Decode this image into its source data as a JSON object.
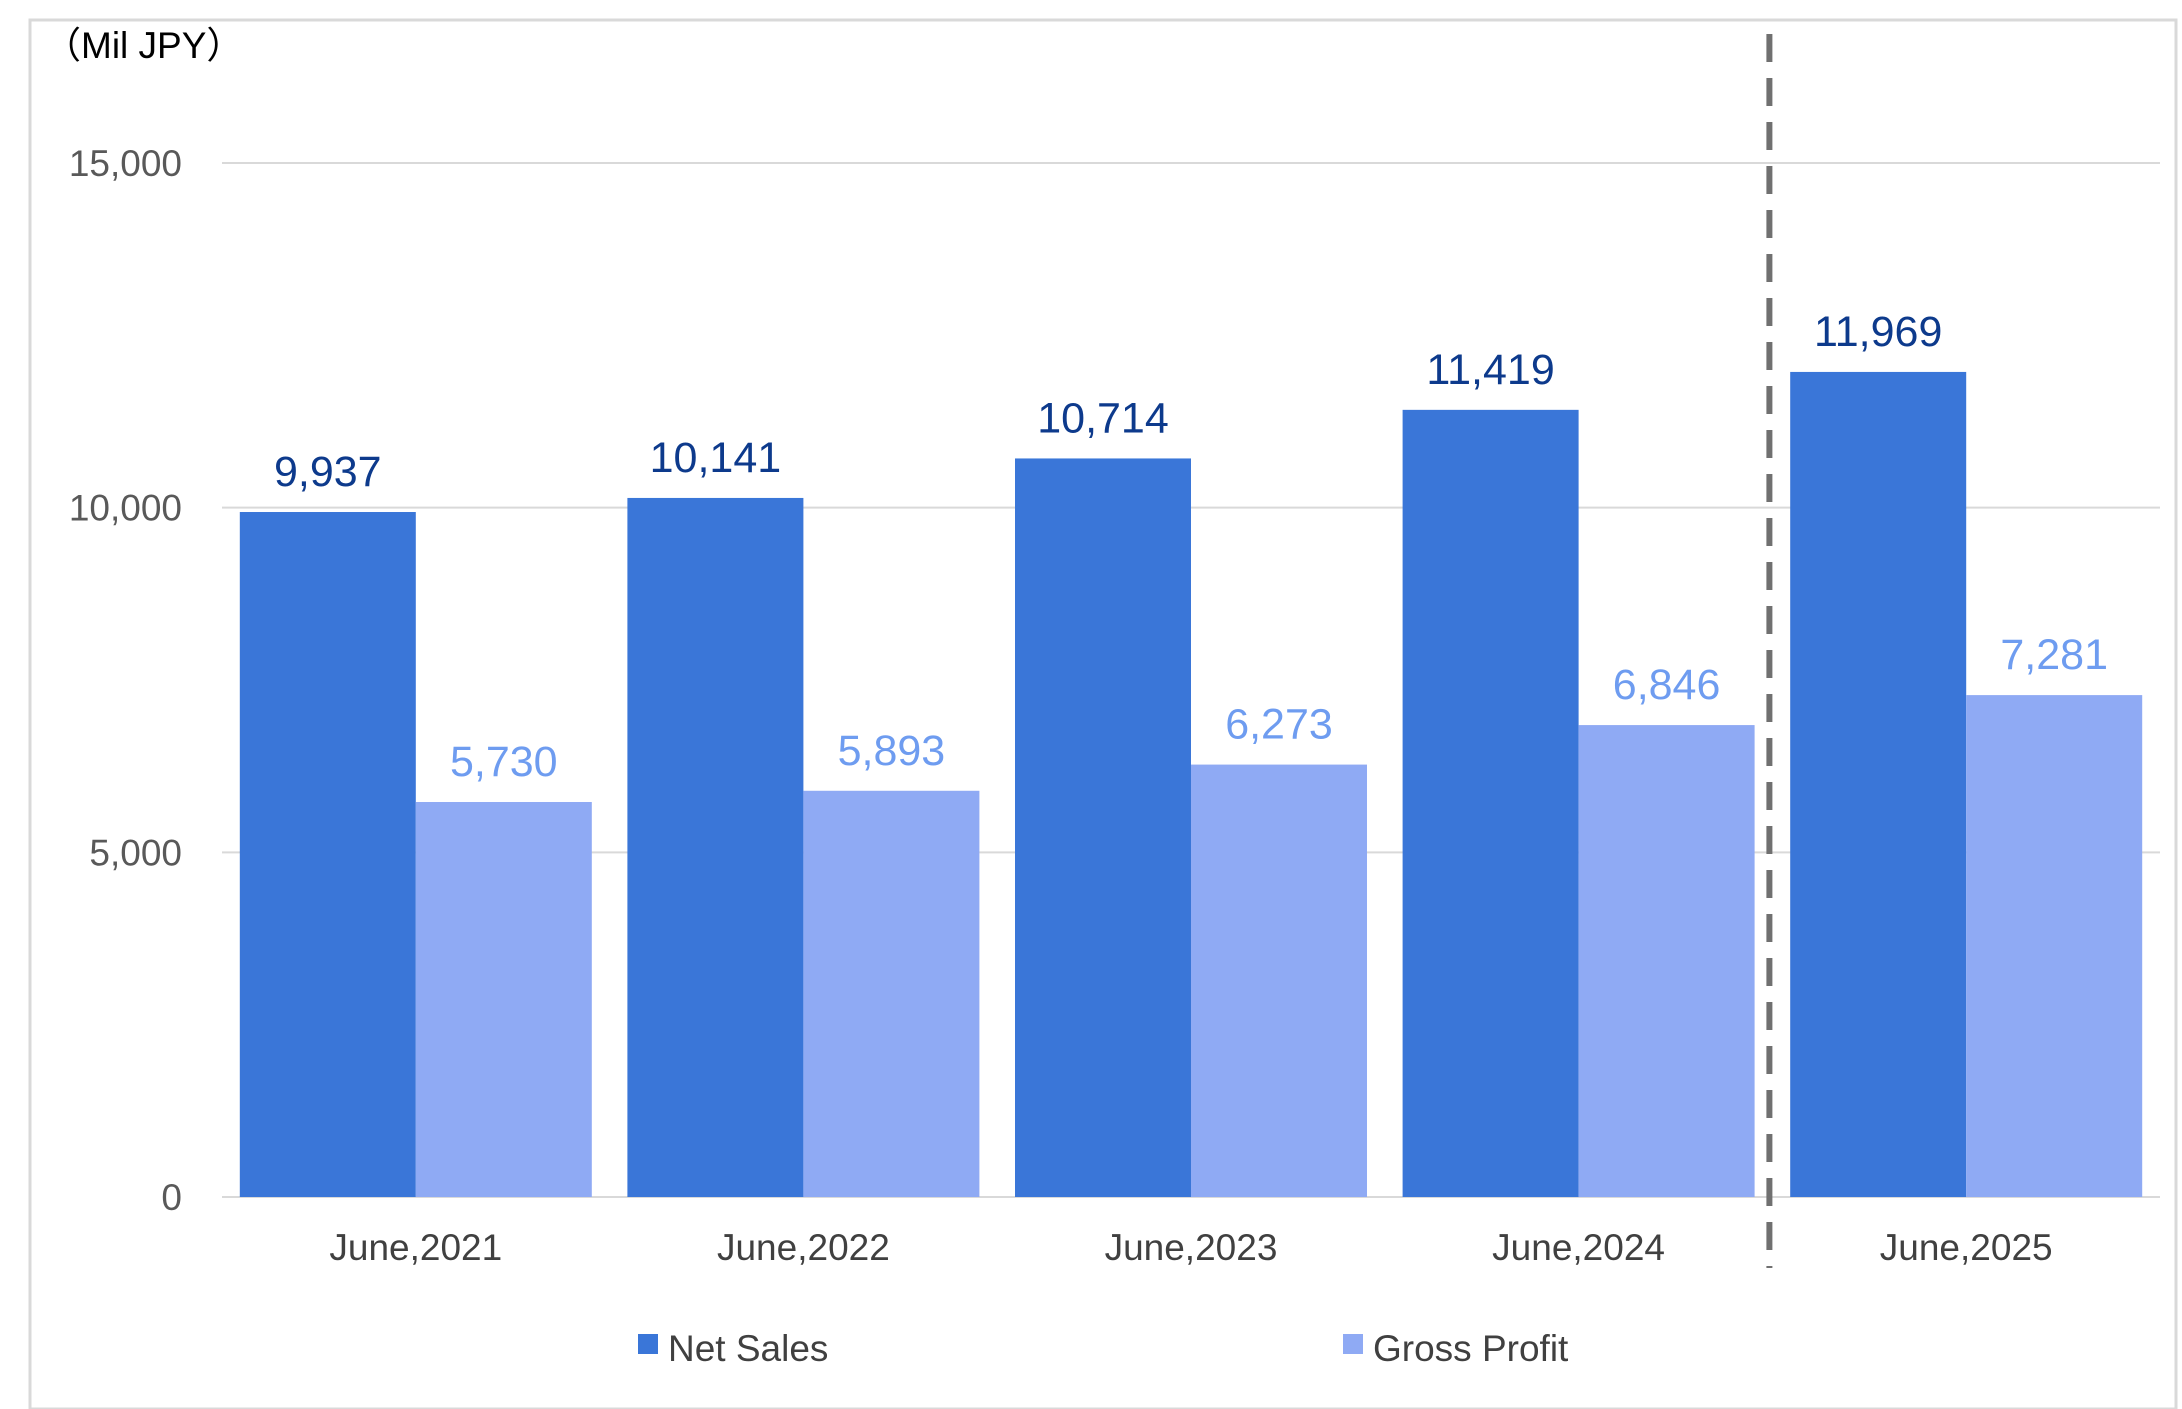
{
  "chart_data": {
    "type": "bar",
    "unit_label": "（Mil JPY）",
    "categories": [
      "June,2021",
      "June,2022",
      "June,2023",
      "June,2024",
      "June,2025"
    ],
    "series": [
      {
        "name": "Net Sales",
        "values": [
          9937,
          10141,
          10714,
          11419,
          11969
        ],
        "labels": [
          "9,937",
          "10,141",
          "10,714",
          "11,419",
          "11,969"
        ]
      },
      {
        "name": "Gross Profit",
        "values": [
          5730,
          5893,
          6273,
          6846,
          7281
        ],
        "labels": [
          "5,730",
          "5,893",
          "6,273",
          "6,846",
          "7,281"
        ]
      }
    ],
    "y_ticks": [
      "0",
      "5,000",
      "10,000",
      "15,000"
    ],
    "ylim": [
      0,
      15000
    ],
    "grid": true,
    "legend_position": "bottom",
    "divider": "dashed line between June,2024 and June,2025"
  },
  "colors": {
    "net_sales": "#3a76d8",
    "gross_profit": "#8faaf4",
    "net_sales_label": "#0d3a8c",
    "gross_profit_label": "#6e9cf0",
    "grid": "#d9d9d9",
    "divider": "#707070",
    "frame": "#d9d9d9"
  }
}
